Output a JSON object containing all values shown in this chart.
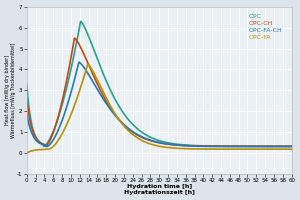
{
  "xlabel": "Hydration time [h]\nHydratationszeit [h]",
  "ylabel": "Heat flow [mW/g dry binder]\nWärmefluss [mW/g Trockenbildemittel]",
  "xlim": [
    0,
    60
  ],
  "ylim": [
    -1.0,
    7.0
  ],
  "xticks": [
    0,
    2,
    4,
    6,
    8,
    10,
    12,
    14,
    16,
    18,
    20,
    22,
    24,
    26,
    28,
    30,
    32,
    34,
    36,
    38,
    40,
    42,
    44,
    46,
    48,
    50,
    52,
    54,
    56,
    58,
    60
  ],
  "yticks": [
    -1.0,
    0.0,
    1.0,
    2.0,
    3.0,
    4.0,
    5.0,
    6.0,
    7.0
  ],
  "background_color": "#dde5ea",
  "plot_bg_color": "#eaf0f4",
  "grid_color": "#ffffff",
  "series": [
    {
      "label": "OPC",
      "color": "#2aa090",
      "lw": 1.2,
      "initial": 3.3,
      "dip_x": 3.8,
      "dip_y": 0.32,
      "peak_x": 12.2,
      "peak_y": 6.3,
      "decay_k": 0.055,
      "decay_p": 1.4
    },
    {
      "label": "OPC-CH",
      "color": "#c04a10",
      "lw": 1.2,
      "initial": 2.6,
      "dip_x": 4.2,
      "dip_y": 0.32,
      "peak_x": 10.8,
      "peak_y": 5.5,
      "decay_k": 0.055,
      "decay_p": 1.4
    },
    {
      "label": "OPC-FA-CH",
      "color": "#2878b8",
      "lw": 1.2,
      "initial": 1.9,
      "dip_x": 4.5,
      "dip_y": 0.3,
      "peak_x": 11.8,
      "peak_y": 4.35,
      "decay_k": 0.052,
      "decay_p": 1.4
    },
    {
      "label": "OPC-FA",
      "color": "#b8900a",
      "lw": 1.2,
      "initial": 0.0,
      "dip_x": 5.0,
      "dip_y": 0.18,
      "peak_x": 13.8,
      "peak_y": 4.25,
      "decay_k": 0.068,
      "decay_p": 1.4
    }
  ]
}
